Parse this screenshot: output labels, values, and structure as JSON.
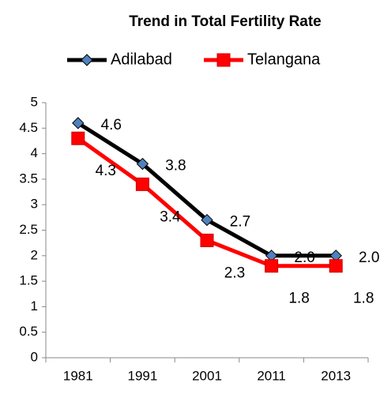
{
  "chart_data": {
    "type": "line",
    "title": "Trend in Total Fertility Rate",
    "categories": [
      "1981",
      "1991",
      "2001",
      "2011",
      "2013"
    ],
    "series": [
      {
        "name": "Adilabad",
        "color": "#000000",
        "marker_color": "#4f81bd",
        "marker": "diamond",
        "values": [
          4.6,
          3.8,
          2.7,
          2.0,
          2.0
        ],
        "value_labels": [
          "4.6",
          "3.8",
          "2.7",
          "2.0",
          "2.0"
        ]
      },
      {
        "name": "Telangana",
        "color": "#ff0000",
        "marker_color": "#ff0000",
        "marker": "square",
        "values": [
          4.3,
          3.4,
          2.3,
          1.8,
          1.8
        ],
        "value_labels": [
          "4.3",
          "3.4",
          "2.3",
          "1.8",
          "1.8"
        ]
      }
    ],
    "ylim": [
      0,
      5
    ],
    "yticks": [
      0,
      0.5,
      1,
      1.5,
      2,
      2.5,
      3,
      3.5,
      4,
      4.5,
      5
    ],
    "legend": "top"
  }
}
